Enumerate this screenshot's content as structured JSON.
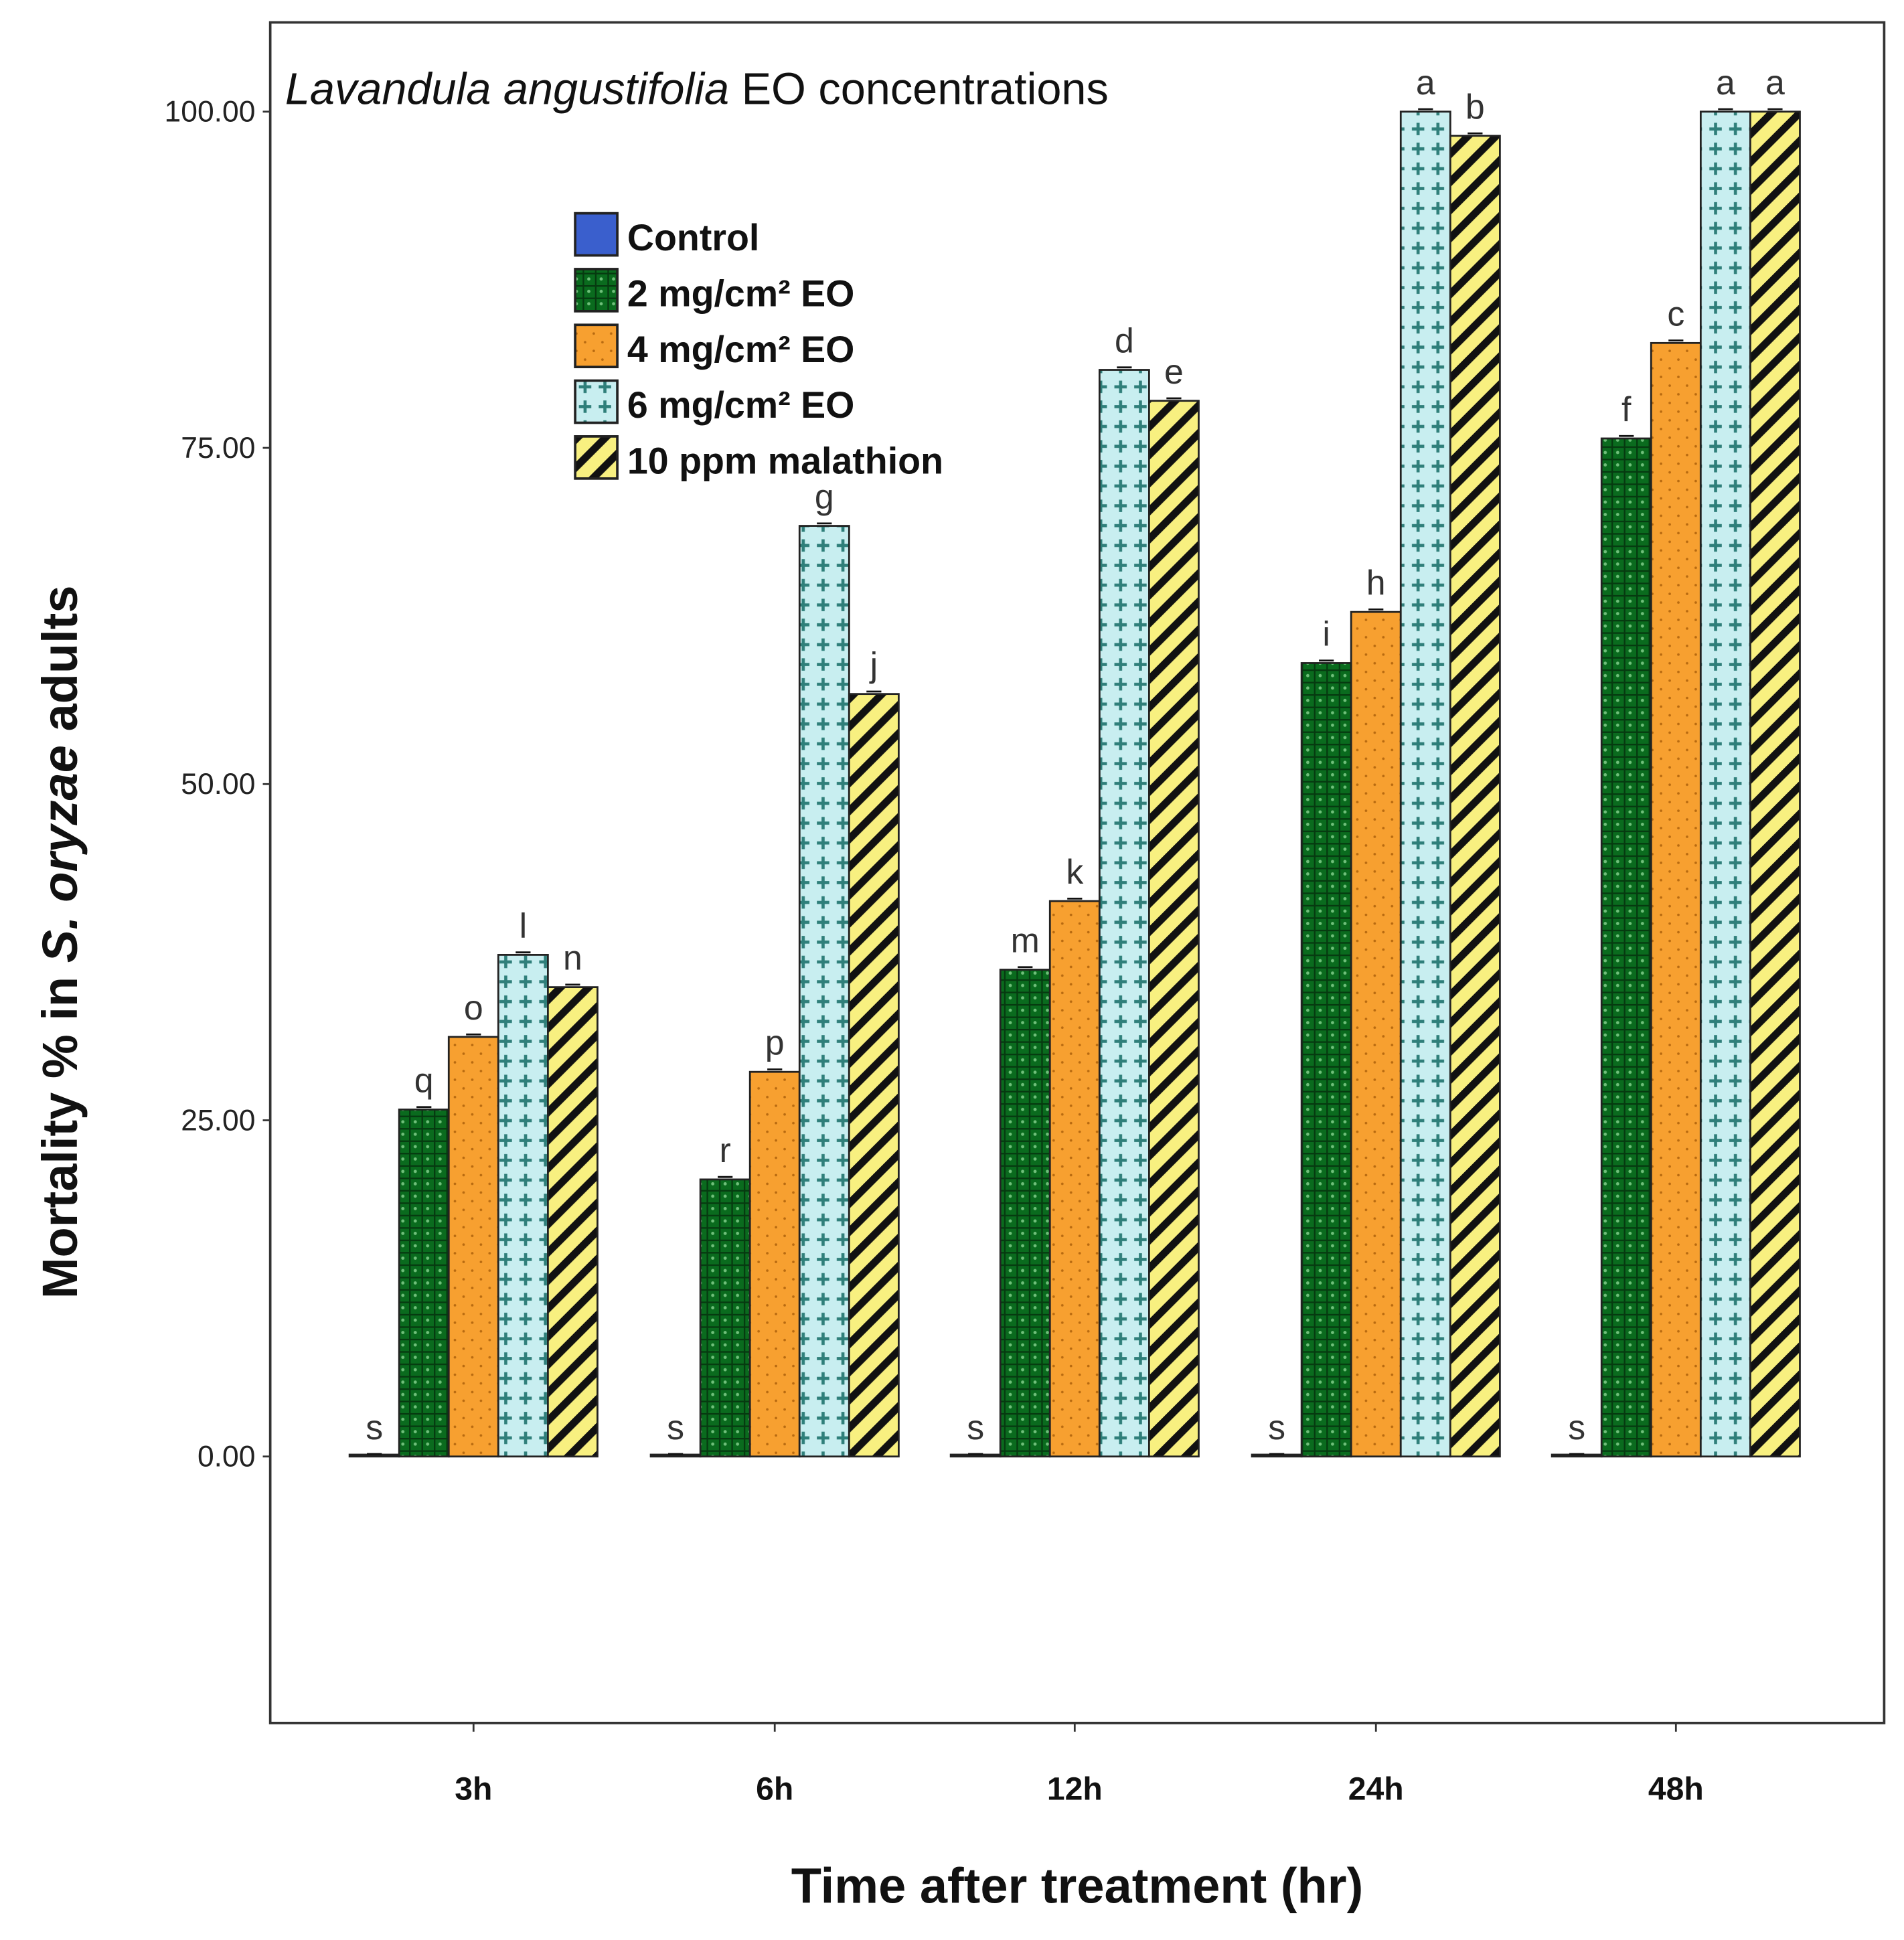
{
  "chart_data": {
    "type": "bar",
    "title_italic": "Lavandula angustifolia",
    "title_rest": " EO concentrations",
    "xlabel": "Time after treatment (hr)",
    "ylabel_pre": "Mortality % in ",
    "ylabel_italic": "S. oryzae",
    "ylabel_post": " adults",
    "ylim": [
      -20,
      106.5
    ],
    "yticks": [
      "0.00",
      "25.00",
      "50.00",
      "75.00",
      "100.00"
    ],
    "ytick_values": [
      0,
      25,
      50,
      75,
      100
    ],
    "categories": [
      "3h",
      "6h",
      "12h",
      "24h",
      "48h"
    ],
    "legend_position": "upper-left inside",
    "series": [
      {
        "name": "Control",
        "color": "#3a5fcd",
        "pattern": "solid",
        "values": [
          0,
          0,
          0,
          0,
          0
        ],
        "letters": [
          "s",
          "s",
          "s",
          "s",
          "s"
        ]
      },
      {
        "name": "2 mg/cm² EO",
        "color": "#0a6b1e",
        "pattern": "grid",
        "values": [
          25.8,
          20.6,
          36.2,
          59.0,
          75.7
        ],
        "letters": [
          "q",
          "r",
          "m",
          "i",
          "f"
        ]
      },
      {
        "name": "4 mg/cm² EO",
        "color": "#f7a030",
        "pattern": "dots",
        "values": [
          31.2,
          28.6,
          41.3,
          62.8,
          82.8
        ],
        "letters": [
          "o",
          "p",
          "k",
          "h",
          "c"
        ]
      },
      {
        "name": "6 mg/cm² EO",
        "color": "#c8eef0",
        "pattern": "plus",
        "values": [
          37.3,
          69.2,
          80.8,
          100,
          100
        ],
        "letters": [
          "l",
          "g",
          "d",
          "a",
          "a"
        ]
      },
      {
        "name": "10 ppm malathion",
        "color": "#f8f080",
        "pattern": "diag",
        "values": [
          34.9,
          56.7,
          78.5,
          98.2,
          100
        ],
        "letters": [
          "n",
          "j",
          "e",
          "b",
          "a"
        ]
      }
    ]
  }
}
